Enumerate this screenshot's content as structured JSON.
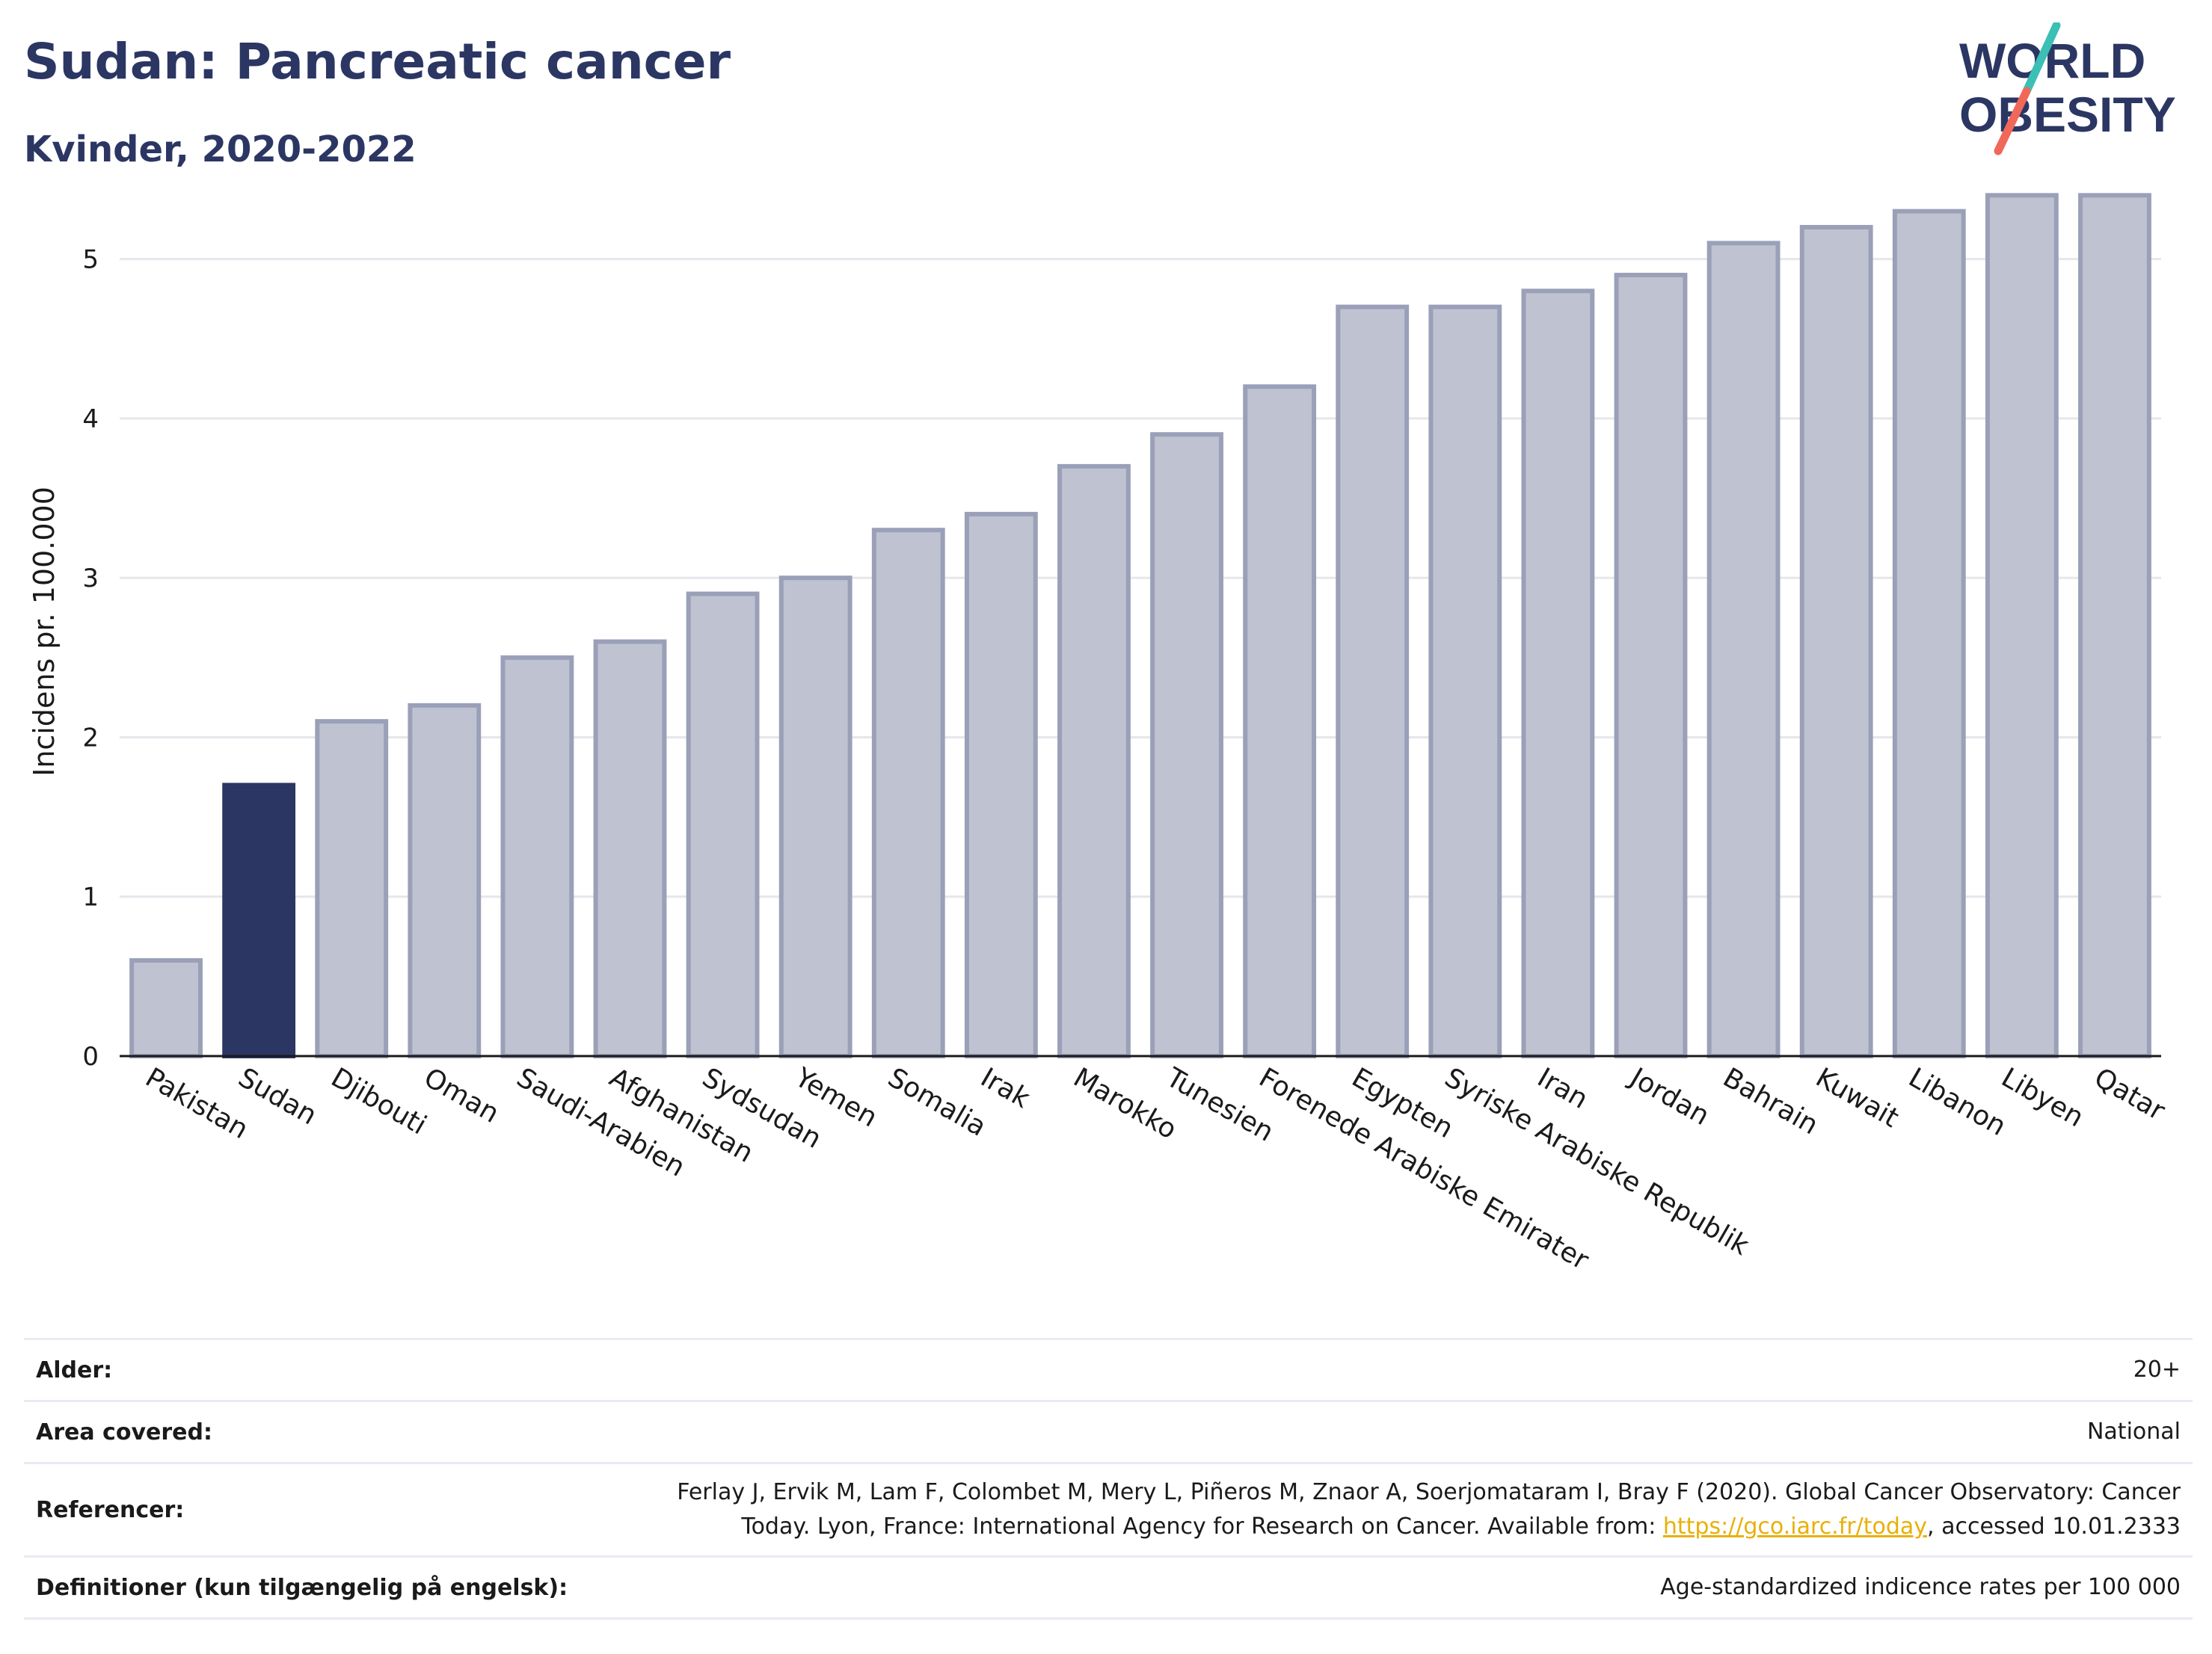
{
  "header": {
    "title": "Sudan: Pancreatic cancer",
    "subtitle": "Kvinder, 2020-2022"
  },
  "logo": {
    "line1": "WORLD",
    "line2": "OBESITY",
    "colors": {
      "text": "#2b3663",
      "slash_top": "#3cbfb4",
      "slash_bottom": "#f0685a"
    }
  },
  "chart_data": {
    "type": "bar",
    "ylabel": "Incidens pr. 100.000",
    "ylim": [
      0,
      5.5
    ],
    "yticks": [
      0,
      1,
      2,
      3,
      4,
      5
    ],
    "grid": true,
    "highlight": "Sudan",
    "colors": {
      "bar": "#bfc2d0",
      "bar_edge": "#9aa0b8",
      "highlight": "#2b3663",
      "axis": "#1a1a1a",
      "grid": "#e6e6ec"
    },
    "categories": [
      "Pakistan",
      "Sudan",
      "Djibouti",
      "Oman",
      "Saudi-Arabien",
      "Afghanistan",
      "Sydsudan",
      "Yemen",
      "Somalia",
      "Irak",
      "Marokko",
      "Tunesien",
      "Forenede Arabiske Emirater",
      "Egypten",
      "Syriske Arabiske Republik",
      "Iran",
      "Jordan",
      "Bahrain",
      "Kuwait",
      "Libanon",
      "Libyen",
      "Qatar"
    ],
    "values": [
      0.6,
      1.7,
      2.1,
      2.2,
      2.5,
      2.6,
      2.9,
      3.0,
      3.3,
      3.4,
      3.7,
      3.9,
      4.2,
      4.7,
      4.7,
      4.8,
      4.9,
      5.1,
      5.2,
      5.3,
      5.4,
      5.4
    ]
  },
  "info": {
    "age": {
      "label": "Alder:",
      "value": "20+"
    },
    "area": {
      "label": "Area covered:",
      "value": "National"
    },
    "references": {
      "label": "Referencer:",
      "line1": "Ferlay J, Ervik M, Lam F, Colombet M, Mery L, Piñeros M, Znaor A, Soerjomataram I, Bray F (2020). Global Cancer Observatory: Cancer",
      "line2_prefix": "Today. Lyon, France: International Agency for Research on Cancer. Available from: ",
      "link": "https://gco.iarc.fr/today",
      "line2_suffix": ", accessed 10.01.2333"
    },
    "definitions": {
      "label": "Definitioner (kun tilgængelig på engelsk):",
      "value": "Age-standardized indicence rates per 100 000"
    }
  }
}
